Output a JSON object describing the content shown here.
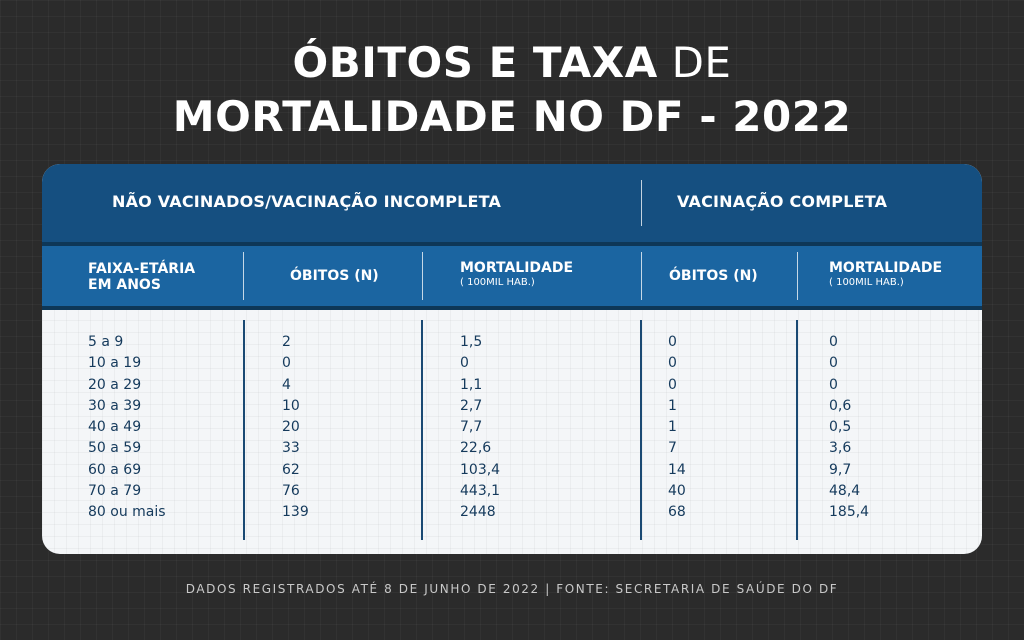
{
  "title": {
    "line1_bold": "ÓBITOS E TAXA",
    "line1_light": "DE",
    "line2": "MORTALIDADE NO DF - 2022"
  },
  "groups": {
    "unvaccinated": "NÃO VACINADOS/VACINAÇÃO INCOMPLETA",
    "vaccinated": "VACINAÇÃO COMPLETA"
  },
  "columns": {
    "age_line1": "FAIXA-ETÁRIA",
    "age_line2": "EM ANOS",
    "deaths": "ÓBITOS (N)",
    "mortality": "MORTALIDADE",
    "mortality_sub": "( 100MIL HAB.)"
  },
  "rows": [
    {
      "age": "5 a 9",
      "unvac_deaths": "2",
      "unvac_mort": "1,5",
      "vac_deaths": "0",
      "vac_mort": "0"
    },
    {
      "age": "10 a 19",
      "unvac_deaths": "0",
      "unvac_mort": "0",
      "vac_deaths": "0",
      "vac_mort": "0"
    },
    {
      "age": "20 a 29",
      "unvac_deaths": "4",
      "unvac_mort": "1,1",
      "vac_deaths": "0",
      "vac_mort": "0"
    },
    {
      "age": "30 a 39",
      "unvac_deaths": "10",
      "unvac_mort": "2,7",
      "vac_deaths": "1",
      "vac_mort": "0,6"
    },
    {
      "age": "40 a 49",
      "unvac_deaths": "20",
      "unvac_mort": "7,7",
      "vac_deaths": "1",
      "vac_mort": "0,5"
    },
    {
      "age": "50 a 59",
      "unvac_deaths": "33",
      "unvac_mort": "22,6",
      "vac_deaths": "7",
      "vac_mort": "3,6"
    },
    {
      "age": "60 a 69",
      "unvac_deaths": "62",
      "unvac_mort": "103,4",
      "vac_deaths": "14",
      "vac_mort": "9,7"
    },
    {
      "age": "70 a 79",
      "unvac_deaths": "76",
      "unvac_mort": "443,1",
      "vac_deaths": "40",
      "vac_mort": "48,4"
    },
    {
      "age": "80 ou mais",
      "unvac_deaths": "139",
      "unvac_mort": "2448",
      "vac_deaths": "68",
      "vac_mort": "185,4"
    }
  ],
  "footer": "DADOS REGISTRADOS ATÉ 8 DE JUNHO DE 2022 | FONTE: SECRETARIA DE SAÚDE DO DF",
  "colors": {
    "background": "#2b2b2b",
    "header_dark": "#154f80",
    "header_mid": "#1b65a1",
    "table_text": "#153a5c"
  }
}
